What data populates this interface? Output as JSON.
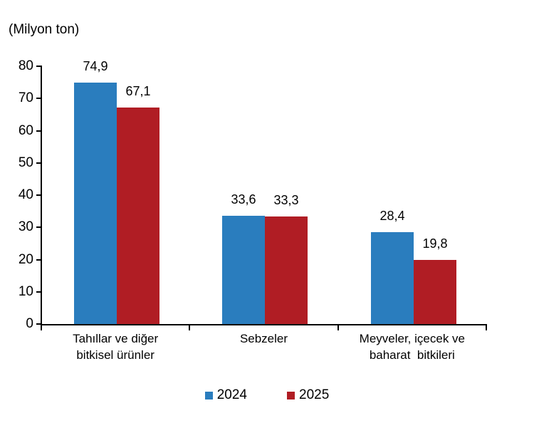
{
  "chart_data": {
    "type": "bar",
    "title": "",
    "unit_label": "(Milyon ton)",
    "xlabel": "",
    "ylabel": "",
    "categories": [
      {
        "lines": [
          "Tahıllar ve diğer",
          "bitkisel ürünler"
        ]
      },
      {
        "lines": [
          "Sebzeler"
        ]
      },
      {
        "lines": [
          "Meyveler, içecek ve",
          "baharat  bitkileri"
        ]
      }
    ],
    "series": [
      {
        "name": "2024",
        "color": "#2A7DBE",
        "values": [
          74.9,
          33.6,
          28.4
        ],
        "labels": [
          "74,9",
          "33,6",
          "28,4"
        ]
      },
      {
        "name": "2025",
        "color": "#B01D24",
        "values": [
          67.1,
          33.3,
          19.8
        ],
        "labels": [
          "67,1",
          "33,3",
          "19,8"
        ]
      }
    ],
    "ylim": [
      0,
      80
    ],
    "yticks": [
      0,
      10,
      20,
      30,
      40,
      50,
      60,
      70,
      80
    ],
    "grid": false,
    "legend_position": "bottom"
  },
  "legend": {
    "items": [
      {
        "label": "2024",
        "color": "#2A7DBE"
      },
      {
        "label": "2025",
        "color": "#B01D24"
      }
    ]
  },
  "colors": {
    "series_2024": "#2A7DBE",
    "series_2025": "#B01D24",
    "axis": "#000000",
    "text": "#000000",
    "background": "#FFFFFF"
  }
}
